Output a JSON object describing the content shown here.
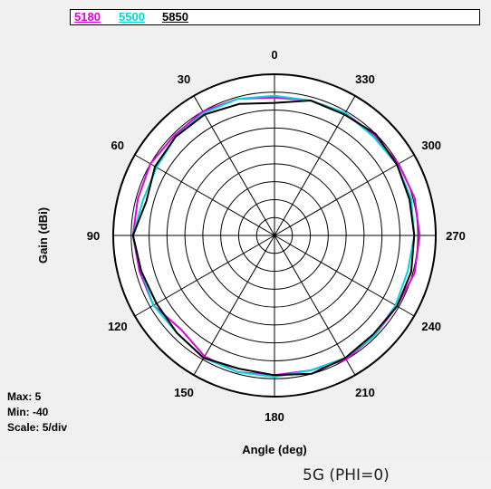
{
  "caption": "5G (PHI=0)",
  "stats": {
    "max": "Max: 5",
    "min": "Min: -40",
    "scale": "Scale: 5/div"
  },
  "chart_data": {
    "type": "polar-line",
    "xlabel": "Angle (deg)",
    "ylabel": "Gain (dBi)",
    "rlim": [
      -40,
      5
    ],
    "scale_per_div": 5,
    "grid": true,
    "angle_labels": [
      "0",
      "30",
      "60",
      "90",
      "120",
      "150",
      "180",
      "210",
      "240",
      "270",
      "300",
      "330"
    ],
    "angle_direction": "counterclockwise from top",
    "series": [
      {
        "name": "5180",
        "color": "#e000e0",
        "angles": [
          0,
          15,
          30,
          45,
          60,
          75,
          90,
          105,
          120,
          135,
          150,
          165,
          180,
          195,
          210,
          225,
          240,
          255,
          270,
          285,
          300,
          315,
          330,
          345
        ],
        "values": [
          -1.5,
          -0.5,
          0,
          -0.5,
          0,
          -0.5,
          -0.5,
          -1,
          -1,
          -3,
          -1,
          -0.5,
          -1,
          -1,
          0,
          -0.5,
          -0.5,
          0.5,
          0.5,
          0.5,
          0,
          -0.5,
          -0.5,
          -1
        ]
      },
      {
        "name": "5500",
        "color": "#00d8d8",
        "angles": [
          0,
          15,
          30,
          45,
          60,
          75,
          90,
          105,
          120,
          135,
          150,
          165,
          180,
          195,
          210,
          225,
          240,
          255,
          270,
          285,
          300,
          315,
          330,
          345
        ],
        "values": [
          -1,
          -0.5,
          -0.5,
          -1,
          -2,
          -2,
          -0.5,
          -1.5,
          -1,
          -1.5,
          -0.5,
          -0.5,
          -0.5,
          -1,
          -0.5,
          -0.5,
          -1,
          -1.5,
          -1,
          -0.5,
          -0.5,
          -1,
          -0.5,
          -1
        ]
      },
      {
        "name": "5850",
        "color": "#000000",
        "angles": [
          0,
          15,
          30,
          45,
          60,
          75,
          90,
          105,
          120,
          135,
          150,
          165,
          180,
          195,
          210,
          225,
          240,
          255,
          270,
          285,
          300,
          315,
          330,
          345
        ],
        "values": [
          -3,
          -2,
          -1,
          -1,
          -1.5,
          -3,
          -0.5,
          -1.5,
          -2,
          -1.5,
          -0.5,
          -1.5,
          -1,
          0,
          -0.5,
          -1,
          -0.5,
          -0.5,
          -1,
          -1,
          -0.5,
          0,
          -1,
          -1
        ]
      }
    ]
  }
}
